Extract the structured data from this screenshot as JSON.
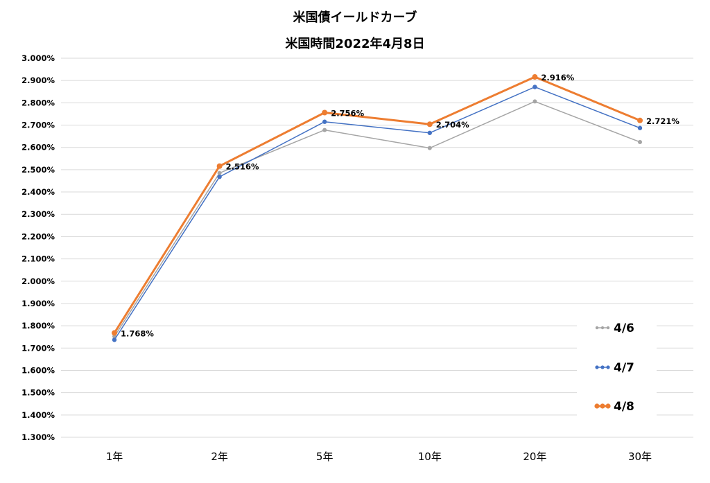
{
  "chart_data": {
    "type": "line",
    "title": "米国債イールドカーブ",
    "subtitle": "米国時間2022年4月8日",
    "categories": [
      "1年",
      "2年",
      "5年",
      "10年",
      "20年",
      "30年"
    ],
    "ylim": [
      1.3,
      3.0
    ],
    "ytick_step": 0.1,
    "yticks": [
      "3.000%",
      "2.900%",
      "2.800%",
      "2.700%",
      "2.600%",
      "2.500%",
      "2.400%",
      "2.300%",
      "2.200%",
      "2.100%",
      "2.000%",
      "1.900%",
      "1.800%",
      "1.700%",
      "1.600%",
      "1.500%",
      "1.400%",
      "1.300%"
    ],
    "grid": true,
    "legend_position": "bottom-right",
    "series": [
      {
        "name": "4/6",
        "color": "#a5a5a5",
        "values": [
          1.752,
          2.485,
          2.678,
          2.597,
          2.806,
          2.624
        ]
      },
      {
        "name": "4/7",
        "color": "#4472c4",
        "values": [
          1.737,
          2.468,
          2.715,
          2.665,
          2.871,
          2.687
        ]
      },
      {
        "name": "4/8",
        "color": "#ed7d31",
        "values": [
          1.768,
          2.516,
          2.756,
          2.704,
          2.916,
          2.721
        ],
        "data_labels": [
          "1.768%",
          "2.516%",
          "2.756%",
          "2.704%",
          "2.916%",
          "2.721%"
        ]
      }
    ]
  }
}
